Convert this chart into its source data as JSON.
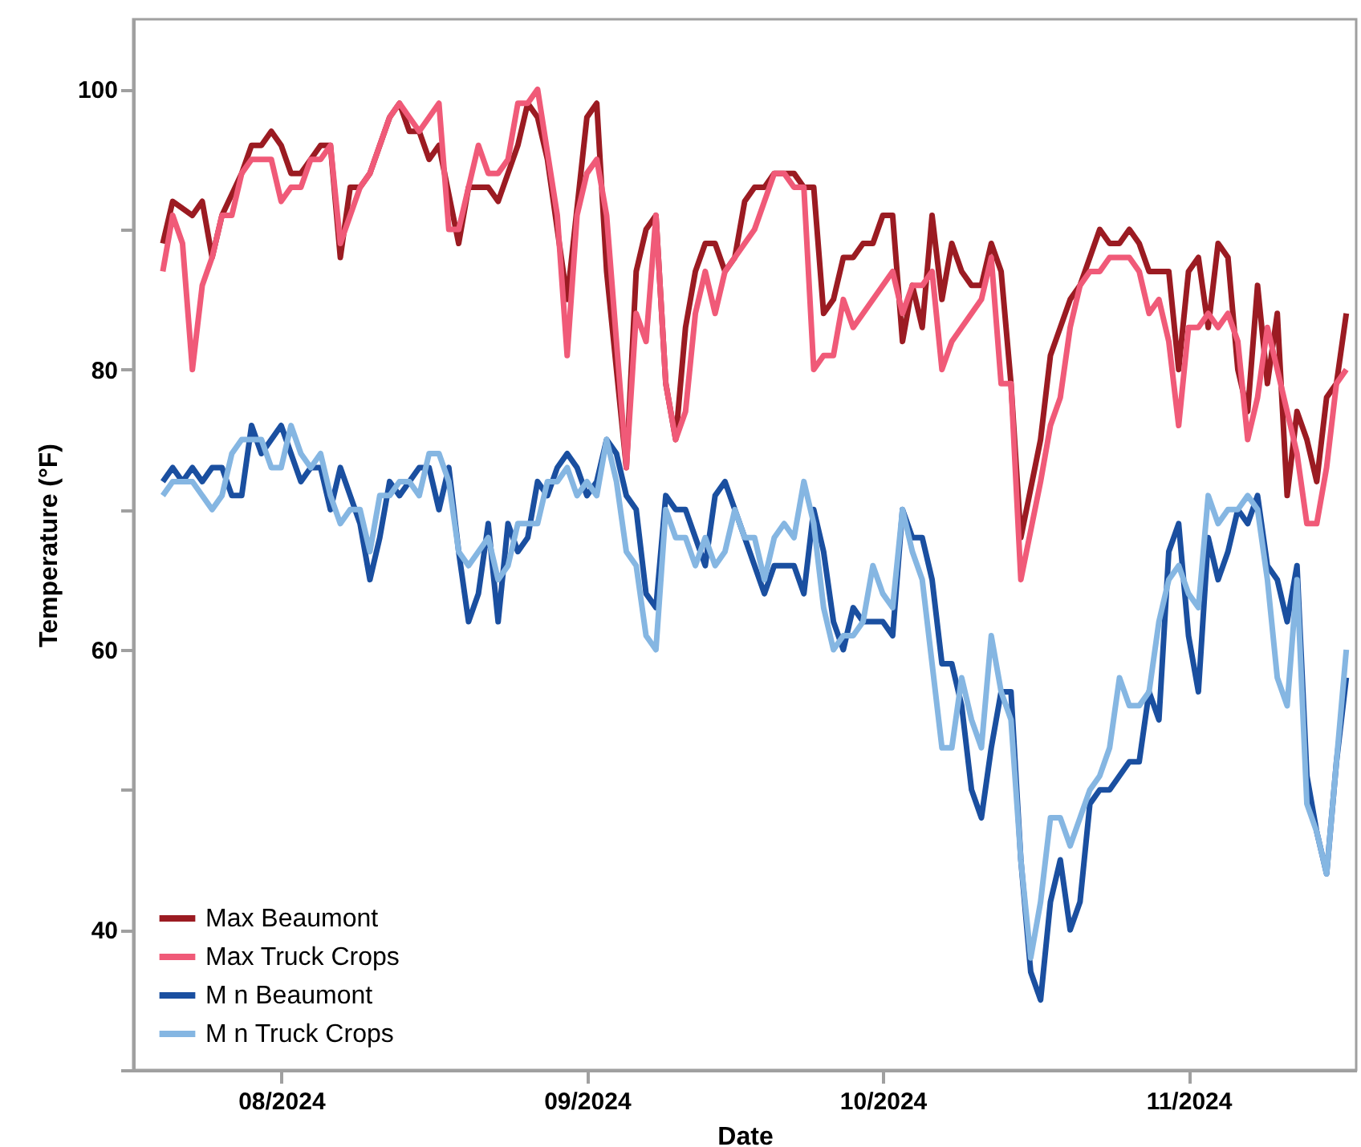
{
  "chart_data": {
    "type": "line",
    "xlabel": "Date",
    "ylabel": "Temperature (°F)",
    "xlim": [
      "2024-07-17",
      "2024-11-18"
    ],
    "ylim": [
      30,
      105
    ],
    "xticks": [
      {
        "value": "2024-08-01",
        "label": "08/2024"
      },
      {
        "value": "2024-09-01",
        "label": "09/2024"
      },
      {
        "value": "2024-10-01",
        "label": "10/2024"
      },
      {
        "value": "2024-11-01",
        "label": "11/2024"
      }
    ],
    "yticks": [
      {
        "value": 30,
        "label": null
      },
      40,
      {
        "value": 50,
        "label": null
      },
      60,
      {
        "value": 70,
        "label": null
      },
      80,
      {
        "value": 90,
        "label": null
      },
      100
    ],
    "grid": false,
    "legend": "bottom left",
    "marker": "none",
    "line_style": "solid",
    "series": [
      {
        "name": "Max Beaumont",
        "color": "#9b1b22",
        "x": [
          "2024-07-20",
          "2024-07-21",
          "2024-07-23",
          "2024-07-24",
          "2024-07-25",
          "2024-07-26",
          "2024-07-28",
          "2024-07-29",
          "2024-07-30",
          "2024-07-31",
          "2024-08-01",
          "2024-08-02",
          "2024-08-03",
          "2024-08-04",
          "2024-08-05",
          "2024-08-06",
          "2024-08-07",
          "2024-08-08",
          "2024-08-09",
          "2024-08-10",
          "2024-08-12",
          "2024-08-13",
          "2024-08-14",
          "2024-08-15",
          "2024-08-16",
          "2024-08-17",
          "2024-08-19",
          "2024-08-20",
          "2024-08-21",
          "2024-08-22",
          "2024-08-23",
          "2024-08-24",
          "2024-08-25",
          "2024-08-26",
          "2024-08-27",
          "2024-08-28",
          "2024-08-30",
          "2024-09-01",
          "2024-09-02",
          "2024-09-03",
          "2024-09-05",
          "2024-09-06",
          "2024-09-07",
          "2024-09-08",
          "2024-09-09",
          "2024-09-10",
          "2024-09-11",
          "2024-09-12",
          "2024-09-13",
          "2024-09-14",
          "2024-09-15",
          "2024-09-16",
          "2024-09-17",
          "2024-09-18",
          "2024-09-19",
          "2024-09-20",
          "2024-09-22",
          "2024-09-23",
          "2024-09-24",
          "2024-09-25",
          "2024-09-26",
          "2024-09-27",
          "2024-09-28",
          "2024-09-29",
          "2024-09-30",
          "2024-10-01",
          "2024-10-02",
          "2024-10-03",
          "2024-10-04",
          "2024-10-05",
          "2024-10-06",
          "2024-10-07",
          "2024-10-08",
          "2024-10-09",
          "2024-10-10",
          "2024-10-11",
          "2024-10-12",
          "2024-10-13",
          "2024-10-14",
          "2024-10-15",
          "2024-10-17",
          "2024-10-18",
          "2024-10-20",
          "2024-10-21",
          "2024-10-23",
          "2024-10-24",
          "2024-10-25",
          "2024-10-26",
          "2024-10-27",
          "2024-10-28",
          "2024-10-30",
          "2024-10-31",
          "2024-11-01",
          "2024-11-02",
          "2024-11-03",
          "2024-11-04",
          "2024-11-05",
          "2024-11-06",
          "2024-11-07",
          "2024-11-08",
          "2024-11-09",
          "2024-11-10",
          "2024-11-11",
          "2024-11-12",
          "2024-11-13",
          "2024-11-14",
          "2024-11-15",
          "2024-11-16",
          "2024-11-17"
        ],
        "values": [
          89,
          92,
          91,
          92,
          88,
          91,
          94,
          96,
          96,
          97,
          96,
          94,
          94,
          95,
          96,
          96,
          88,
          93,
          93,
          94,
          98,
          99,
          97,
          97,
          95,
          96,
          89,
          93,
          93,
          93,
          92,
          94,
          96,
          99,
          98,
          95,
          85,
          98,
          99,
          87,
          73,
          87,
          90,
          91,
          79,
          75,
          83,
          87,
          89,
          89,
          87,
          88,
          92,
          93,
          93,
          94,
          94,
          93,
          93,
          84,
          85,
          88,
          88,
          89,
          89,
          91,
          91,
          82,
          86,
          83,
          91,
          85,
          89,
          87,
          86,
          86,
          89,
          87,
          79,
          68,
          75,
          81,
          85,
          86,
          90,
          89,
          89,
          90,
          89,
          87,
          87,
          80,
          87,
          88,
          83,
          89,
          88,
          80,
          77,
          86,
          79,
          84,
          71,
          77,
          75,
          72,
          78,
          79,
          84
        ]
      },
      {
        "name": "Max Truck Crops",
        "color": "#f05a78",
        "x": [
          "2024-07-20",
          "2024-07-21",
          "2024-07-22",
          "2024-07-23",
          "2024-07-24",
          "2024-07-25",
          "2024-07-26",
          "2024-07-27",
          "2024-07-28",
          "2024-07-29",
          "2024-07-31",
          "2024-08-01",
          "2024-08-02",
          "2024-08-03",
          "2024-08-04",
          "2024-08-05",
          "2024-08-06",
          "2024-08-07",
          "2024-08-08",
          "2024-08-09",
          "2024-08-10",
          "2024-08-12",
          "2024-08-13",
          "2024-08-15",
          "2024-08-17",
          "2024-08-18",
          "2024-08-19",
          "2024-08-20",
          "2024-08-21",
          "2024-08-22",
          "2024-08-23",
          "2024-08-24",
          "2024-08-25",
          "2024-08-26",
          "2024-08-27",
          "2024-08-29",
          "2024-08-30",
          "2024-08-31",
          "2024-09-01",
          "2024-09-02",
          "2024-09-03",
          "2024-09-05",
          "2024-09-06",
          "2024-09-07",
          "2024-09-08",
          "2024-09-09",
          "2024-09-10",
          "2024-09-11",
          "2024-09-12",
          "2024-09-13",
          "2024-09-14",
          "2024-09-15",
          "2024-09-16",
          "2024-09-17",
          "2024-09-18",
          "2024-09-20",
          "2024-09-21",
          "2024-09-22",
          "2024-09-23",
          "2024-09-24",
          "2024-09-25",
          "2024-09-26",
          "2024-09-27",
          "2024-09-28",
          "2024-10-02",
          "2024-10-03",
          "2024-10-04",
          "2024-10-05",
          "2024-10-06",
          "2024-10-07",
          "2024-10-08",
          "2024-10-11",
          "2024-10-12",
          "2024-10-13",
          "2024-10-14",
          "2024-10-15",
          "2024-10-17",
          "2024-10-18",
          "2024-10-19",
          "2024-10-20",
          "2024-10-21",
          "2024-10-22",
          "2024-10-23",
          "2024-10-24",
          "2024-10-26",
          "2024-10-27",
          "2024-10-28",
          "2024-10-29",
          "2024-10-30",
          "2024-10-31",
          "2024-11-01",
          "2024-11-02",
          "2024-11-03",
          "2024-11-04",
          "2024-11-05",
          "2024-11-06",
          "2024-11-07",
          "2024-11-08",
          "2024-11-09",
          "2024-11-10",
          "2024-11-11",
          "2024-11-12",
          "2024-11-13",
          "2024-11-14",
          "2024-11-15",
          "2024-11-16",
          "2024-11-17"
        ],
        "values": [
          87,
          91,
          89,
          80,
          86,
          88,
          91,
          91,
          94,
          95,
          95,
          92,
          93,
          93,
          95,
          95,
          96,
          89,
          91,
          93,
          94,
          98,
          99,
          97,
          99,
          90,
          90,
          93,
          96,
          94,
          94,
          95,
          99,
          99,
          100,
          91,
          81,
          91,
          94,
          95,
          91,
          73,
          84,
          82,
          91,
          79,
          75,
          77,
          84,
          87,
          84,
          87,
          88,
          89,
          90,
          94,
          94,
          93,
          93,
          80,
          81,
          81,
          85,
          83,
          87,
          84,
          86,
          86,
          87,
          80,
          82,
          85,
          88,
          79,
          79,
          65,
          72,
          76,
          78,
          83,
          86,
          87,
          87,
          88,
          88,
          87,
          84,
          85,
          82,
          76,
          83,
          83,
          84,
          83,
          84,
          82,
          75,
          78,
          83,
          80,
          77,
          74,
          69,
          69,
          73,
          79,
          80
        ]
      },
      {
        "name": "M n Beaumont",
        "color": "#1a4fa0",
        "x": [
          "2024-07-20",
          "2024-07-21",
          "2024-07-22",
          "2024-07-23",
          "2024-07-24",
          "2024-07-25",
          "2024-07-26",
          "2024-07-27",
          "2024-07-28",
          "2024-07-29",
          "2024-07-30",
          "2024-07-31",
          "2024-08-01",
          "2024-08-02",
          "2024-08-03",
          "2024-08-04",
          "2024-08-05",
          "2024-08-06",
          "2024-08-07",
          "2024-08-08",
          "2024-08-09",
          "2024-08-10",
          "2024-08-11",
          "2024-08-12",
          "2024-08-13",
          "2024-08-14",
          "2024-08-15",
          "2024-08-16",
          "2024-08-17",
          "2024-08-18",
          "2024-08-19",
          "2024-08-20",
          "2024-08-21",
          "2024-08-22",
          "2024-08-23",
          "2024-08-24",
          "2024-08-25",
          "2024-08-26",
          "2024-08-27",
          "2024-08-28",
          "2024-08-29",
          "2024-08-30",
          "2024-08-31",
          "2024-09-01",
          "2024-09-02",
          "2024-09-03",
          "2024-09-04",
          "2024-09-05",
          "2024-09-06",
          "2024-09-07",
          "2024-09-08",
          "2024-09-09",
          "2024-09-10",
          "2024-09-11",
          "2024-09-12",
          "2024-09-13",
          "2024-09-14",
          "2024-09-15",
          "2024-09-16",
          "2024-09-17",
          "2024-09-19",
          "2024-09-20",
          "2024-09-22",
          "2024-09-23",
          "2024-09-24",
          "2024-09-25",
          "2024-09-26",
          "2024-09-27",
          "2024-09-28",
          "2024-09-29",
          "2024-10-01",
          "2024-10-02",
          "2024-10-03",
          "2024-10-04",
          "2024-10-05",
          "2024-10-06",
          "2024-10-07",
          "2024-10-08",
          "2024-10-09",
          "2024-10-10",
          "2024-10-11",
          "2024-10-12",
          "2024-10-13",
          "2024-10-14",
          "2024-10-15",
          "2024-10-16",
          "2024-10-17",
          "2024-10-18",
          "2024-10-19",
          "2024-10-20",
          "2024-10-21",
          "2024-10-22",
          "2024-10-23",
          "2024-10-24",
          "2024-10-25",
          "2024-10-26",
          "2024-10-27",
          "2024-10-28",
          "2024-10-29",
          "2024-10-30",
          "2024-10-31",
          "2024-11-01",
          "2024-11-02",
          "2024-11-03",
          "2024-11-04",
          "2024-11-05",
          "2024-11-06",
          "2024-11-07",
          "2024-11-08",
          "2024-11-09",
          "2024-11-10",
          "2024-11-11",
          "2024-11-12",
          "2024-11-13",
          "2024-11-14",
          "2024-11-15",
          "2024-11-16",
          "2024-11-17"
        ],
        "values": [
          72,
          73,
          72,
          73,
          72,
          73,
          73,
          71,
          71,
          76,
          74,
          75,
          76,
          74,
          72,
          73,
          73,
          70,
          73,
          71,
          69,
          65,
          68,
          72,
          71,
          72,
          73,
          73,
          70,
          73,
          67,
          62,
          64,
          69,
          62,
          69,
          67,
          68,
          72,
          71,
          73,
          74,
          73,
          71,
          72,
          75,
          74,
          71,
          70,
          64,
          63,
          71,
          70,
          70,
          68,
          66,
          71,
          72,
          70,
          68,
          64,
          66,
          66,
          64,
          70,
          67,
          62,
          60,
          63,
          62,
          62,
          61,
          70,
          68,
          68,
          65,
          59,
          59,
          56,
          50,
          48,
          53,
          57,
          57,
          45,
          37,
          35,
          42,
          45,
          40,
          42,
          49,
          50,
          50,
          51,
          52,
          52,
          57,
          55,
          67,
          69,
          61,
          57,
          68,
          65,
          67,
          70,
          69,
          71,
          66,
          65,
          62,
          66,
          51,
          47,
          44,
          52,
          58
        ]
      },
      {
        "name": "M n Truck Crops",
        "color": "#85b6e2",
        "x": [
          "2024-07-20",
          "2024-07-21",
          "2024-07-23",
          "2024-07-25",
          "2024-07-26",
          "2024-07-27",
          "2024-07-28",
          "2024-07-30",
          "2024-07-31",
          "2024-08-01",
          "2024-08-02",
          "2024-08-03",
          "2024-08-04",
          "2024-08-05",
          "2024-08-06",
          "2024-08-07",
          "2024-08-08",
          "2024-08-09",
          "2024-08-10",
          "2024-08-11",
          "2024-08-12",
          "2024-08-13",
          "2024-08-14",
          "2024-08-15",
          "2024-08-16",
          "2024-08-17",
          "2024-08-18",
          "2024-08-19",
          "2024-08-20",
          "2024-08-21",
          "2024-08-22",
          "2024-08-23",
          "2024-08-24",
          "2024-08-25",
          "2024-08-27",
          "2024-08-28",
          "2024-08-29",
          "2024-08-30",
          "2024-08-31",
          "2024-09-01",
          "2024-09-02",
          "2024-09-03",
          "2024-09-04",
          "2024-09-05",
          "2024-09-06",
          "2024-09-07",
          "2024-09-08",
          "2024-09-09",
          "2024-09-10",
          "2024-09-11",
          "2024-09-12",
          "2024-09-13",
          "2024-09-14",
          "2024-09-15",
          "2024-09-16",
          "2024-09-17",
          "2024-09-18",
          "2024-09-19",
          "2024-09-20",
          "2024-09-21",
          "2024-09-22",
          "2024-09-23",
          "2024-09-24",
          "2024-09-25",
          "2024-09-26",
          "2024-09-27",
          "2024-09-28",
          "2024-09-29",
          "2024-09-30",
          "2024-10-01",
          "2024-10-02",
          "2024-10-03",
          "2024-10-04",
          "2024-10-05",
          "2024-10-07",
          "2024-10-08",
          "2024-10-09",
          "2024-10-10",
          "2024-10-11",
          "2024-10-12",
          "2024-10-13",
          "2024-10-14",
          "2024-10-15",
          "2024-10-16",
          "2024-10-17",
          "2024-10-18",
          "2024-10-19",
          "2024-10-20",
          "2024-10-21",
          "2024-10-22",
          "2024-10-23",
          "2024-10-24",
          "2024-10-25",
          "2024-10-26",
          "2024-10-27",
          "2024-10-28",
          "2024-10-29",
          "2024-10-30",
          "2024-10-31",
          "2024-11-01",
          "2024-11-02",
          "2024-11-03",
          "2024-11-04",
          "2024-11-05",
          "2024-11-06",
          "2024-11-07",
          "2024-11-08",
          "2024-11-09",
          "2024-11-10",
          "2024-11-11",
          "2024-11-12",
          "2024-11-13",
          "2024-11-14",
          "2024-11-15",
          "2024-11-17"
        ],
        "values": [
          71,
          72,
          72,
          70,
          71,
          74,
          75,
          75,
          73,
          73,
          76,
          74,
          73,
          74,
          71,
          69,
          70,
          70,
          67,
          71,
          71,
          72,
          72,
          71,
          74,
          74,
          72,
          67,
          66,
          67,
          68,
          65,
          66,
          69,
          69,
          72,
          72,
          73,
          71,
          72,
          71,
          75,
          72,
          67,
          66,
          61,
          60,
          70,
          68,
          68,
          66,
          68,
          66,
          67,
          70,
          68,
          68,
          65,
          68,
          69,
          68,
          72,
          69,
          63,
          60,
          61,
          61,
          62,
          66,
          64,
          63,
          70,
          67,
          65,
          53,
          53,
          58,
          55,
          53,
          61,
          57,
          55,
          45,
          38,
          42,
          48,
          48,
          46,
          48,
          50,
          51,
          53,
          58,
          56,
          56,
          57,
          62,
          65,
          66,
          64,
          63,
          71,
          69,
          70,
          70,
          71,
          70,
          65,
          58,
          56,
          65,
          49,
          47,
          44,
          60
        ]
      }
    ]
  }
}
